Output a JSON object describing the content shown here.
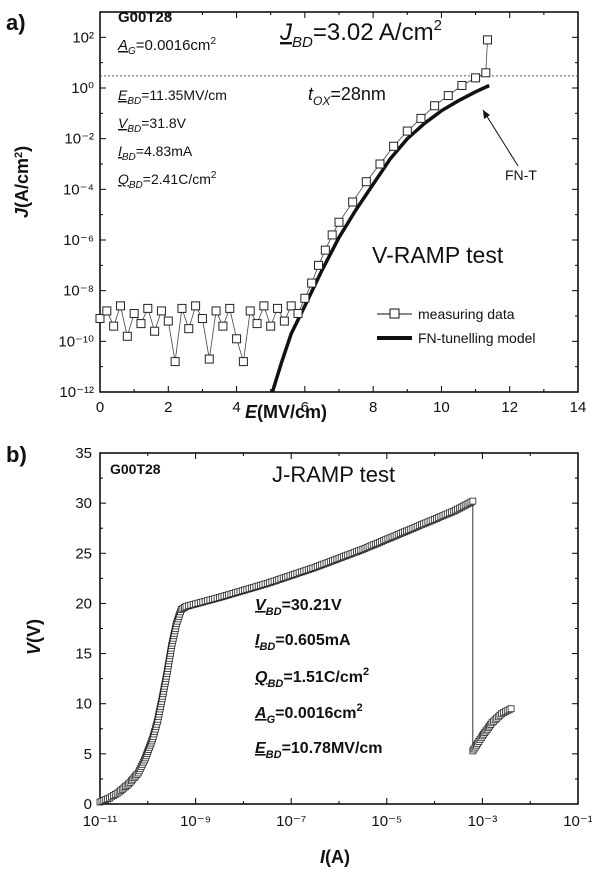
{
  "chart_data": [
    {
      "panel_label": "a)",
      "type": "scatter",
      "xlabel": "E(MV/cm)",
      "ylabel": "J(A/cm²)",
      "xlim": [
        0,
        14
      ],
      "ylim_log10": [
        -12,
        3
      ],
      "x_ticks": [
        "0",
        "2",
        "4",
        "6",
        "8",
        "10",
        "12",
        "14"
      ],
      "y_ticks": [
        "10⁻¹²",
        "10⁻¹⁰",
        "10⁻⁸",
        "10⁻⁶",
        "10⁻⁴",
        "10⁻²",
        "10⁰",
        "10²"
      ],
      "y_scale": "log",
      "sample": "G00T28",
      "a_g": "A_G=0.0016cm²",
      "jbd": "J_BD=3.02 A/cm²",
      "tox": "t_OX=28nm",
      "params": [
        "E_BD=11.35MV/cm",
        "V_BD=31.8V",
        "I_BD=4.83mA",
        "Q_BD=2.41C/cm²"
      ],
      "test_name": "V-RAMP test",
      "annotation": "FN-T",
      "legend": [
        "measuring data",
        "FN-tunelling model"
      ],
      "legend_position": "bottom-right",
      "breakdown_line_J": 3.02,
      "series": [
        {
          "name": "measuring data",
          "marker": "open-square",
          "points": [
            [
              0.0,
              -9.1
            ],
            [
              0.2,
              -8.8
            ],
            [
              0.4,
              -9.4
            ],
            [
              0.6,
              -8.6
            ],
            [
              0.8,
              -9.8
            ],
            [
              1.0,
              -8.9
            ],
            [
              1.2,
              -9.3
            ],
            [
              1.4,
              -8.7
            ],
            [
              1.6,
              -9.6
            ],
            [
              1.8,
              -8.8
            ],
            [
              2.0,
              -9.2
            ],
            [
              2.2,
              -10.8
            ],
            [
              2.4,
              -8.7
            ],
            [
              2.6,
              -9.5
            ],
            [
              2.8,
              -8.6
            ],
            [
              3.0,
              -9.1
            ],
            [
              3.2,
              -10.7
            ],
            [
              3.4,
              -8.8
            ],
            [
              3.6,
              -9.4
            ],
            [
              3.8,
              -8.7
            ],
            [
              4.0,
              -9.9
            ],
            [
              4.2,
              -10.8
            ],
            [
              4.4,
              -8.8
            ],
            [
              4.6,
              -9.3
            ],
            [
              4.8,
              -8.6
            ],
            [
              5.0,
              -9.4
            ],
            [
              5.2,
              -8.7
            ],
            [
              5.4,
              -9.2
            ],
            [
              5.6,
              -8.6
            ],
            [
              5.8,
              -8.9
            ],
            [
              6.0,
              -8.3
            ],
            [
              6.2,
              -7.7
            ],
            [
              6.4,
              -7.0
            ],
            [
              6.6,
              -6.4
            ],
            [
              6.8,
              -5.8
            ],
            [
              7.0,
              -5.3
            ],
            [
              7.4,
              -4.5
            ],
            [
              7.8,
              -3.7
            ],
            [
              8.2,
              -3.0
            ],
            [
              8.6,
              -2.3
            ],
            [
              9.0,
              -1.7
            ],
            [
              9.4,
              -1.2
            ],
            [
              9.8,
              -0.7
            ],
            [
              10.2,
              -0.3
            ],
            [
              10.6,
              0.1
            ],
            [
              11.0,
              0.4
            ],
            [
              11.3,
              0.6
            ],
            [
              11.35,
              1.9
            ]
          ]
        },
        {
          "name": "FN-tunelling model",
          "style": "thick-line",
          "points": [
            [
              5.05,
              -12.0
            ],
            [
              5.3,
              -10.9
            ],
            [
              5.6,
              -9.7
            ],
            [
              6.0,
              -8.6
            ],
            [
              6.5,
              -7.2
            ],
            [
              7.0,
              -5.9
            ],
            [
              7.5,
              -4.8
            ],
            [
              8.0,
              -3.8
            ],
            [
              8.5,
              -2.8
            ],
            [
              9.0,
              -2.0
            ],
            [
              9.5,
              -1.4
            ],
            [
              10.0,
              -0.9
            ],
            [
              10.5,
              -0.5
            ],
            [
              11.0,
              -0.15
            ],
            [
              11.4,
              0.1
            ]
          ]
        }
      ]
    },
    {
      "panel_label": "b)",
      "type": "scatter",
      "xlabel": "I(A)",
      "ylabel": "V(V)",
      "x_scale": "log",
      "xlim_log10": [
        -11,
        -1
      ],
      "ylim": [
        0,
        35
      ],
      "x_ticks": [
        "10⁻¹¹",
        "10⁻⁹",
        "10⁻⁷",
        "10⁻⁵",
        "10⁻³",
        "10⁻¹"
      ],
      "y_ticks": [
        "0",
        "5",
        "10",
        "15",
        "20",
        "25",
        "30",
        "35"
      ],
      "sample": "G00T28",
      "test_name": "J-RAMP test",
      "params": [
        "V_BD=30.21V",
        "I_BD=0.605mA",
        "Q_BD=1.51C/cm²",
        "A_G=0.0016cm²",
        "E_BD=10.78MV/cm"
      ],
      "series": [
        {
          "name": "",
          "marker": "open-square",
          "points": [
            [
              -11.0,
              0.2
            ],
            [
              -10.8,
              0.6
            ],
            [
              -10.6,
              1.2
            ],
            [
              -10.4,
              2.0
            ],
            [
              -10.2,
              3.1
            ],
            [
              -10.05,
              4.6
            ],
            [
              -9.9,
              6.5
            ],
            [
              -9.8,
              8.2
            ],
            [
              -9.7,
              10.5
            ],
            [
              -9.6,
              13.0
            ],
            [
              -9.5,
              15.8
            ],
            [
              -9.4,
              18.0
            ],
            [
              -9.3,
              19.4
            ],
            [
              -9.2,
              19.7
            ],
            [
              -8.5,
              20.6
            ],
            [
              -7.5,
              22.0
            ],
            [
              -6.5,
              23.6
            ],
            [
              -5.5,
              25.4
            ],
            [
              -4.5,
              27.4
            ],
            [
              -3.6,
              29.2
            ],
            [
              -3.2,
              30.2
            ],
            [
              -3.2,
              5.3
            ],
            [
              -3.0,
              6.8
            ],
            [
              -2.8,
              8.1
            ],
            [
              -2.6,
              9.0
            ],
            [
              -2.4,
              9.5
            ]
          ]
        }
      ]
    }
  ]
}
